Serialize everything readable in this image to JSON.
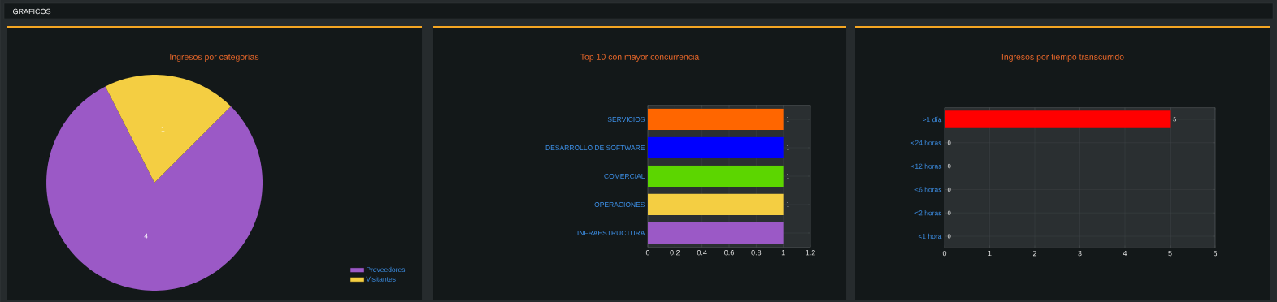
{
  "chart_data": [
    {
      "type": "other",
      "title": "GRAFICOS"
    },
    {
      "type": "pie",
      "title": "Ingresos por categorías",
      "categories": [
        "Proveedores",
        "Visitantes"
      ],
      "values": [
        4,
        1
      ],
      "colors": [
        "#9b59c6",
        "#f4ce42"
      ],
      "data_labels": true,
      "legend": "bottom right"
    },
    {
      "type": "bar",
      "orientation": "horizontal",
      "title": "Top 10 con mayor concurrencia",
      "categories": [
        "SERVICIOS",
        "DESARROLLO DE SOFTWARE",
        "COMERCIAL",
        "OPERACIONES",
        "INFRAESTRUCTURA"
      ],
      "values": [
        1,
        1,
        1,
        1,
        1
      ],
      "colors": [
        "#ff6600",
        "#0000ff",
        "#5cd600",
        "#f4ce42",
        "#9b59c6"
      ],
      "xlim": [
        0,
        1.2
      ],
      "xticks": [
        0,
        0.2,
        0.4,
        0.6,
        0.8,
        1,
        1.2
      ],
      "grid": true,
      "data_labels": true
    },
    {
      "type": "bar",
      "orientation": "horizontal",
      "title": "Ingresos por tiempo transcurrido",
      "categories": [
        ">1 día",
        "<24 horas",
        "<12 horas",
        "<6 horas",
        "<2 horas",
        "<1 hora"
      ],
      "values": [
        5,
        0,
        0,
        0,
        0,
        0
      ],
      "color": "#ff0000",
      "xlim": [
        0,
        6
      ],
      "xticks": [
        0,
        1,
        2,
        3,
        4,
        5,
        6
      ],
      "grid": true,
      "data_labels": true
    }
  ]
}
